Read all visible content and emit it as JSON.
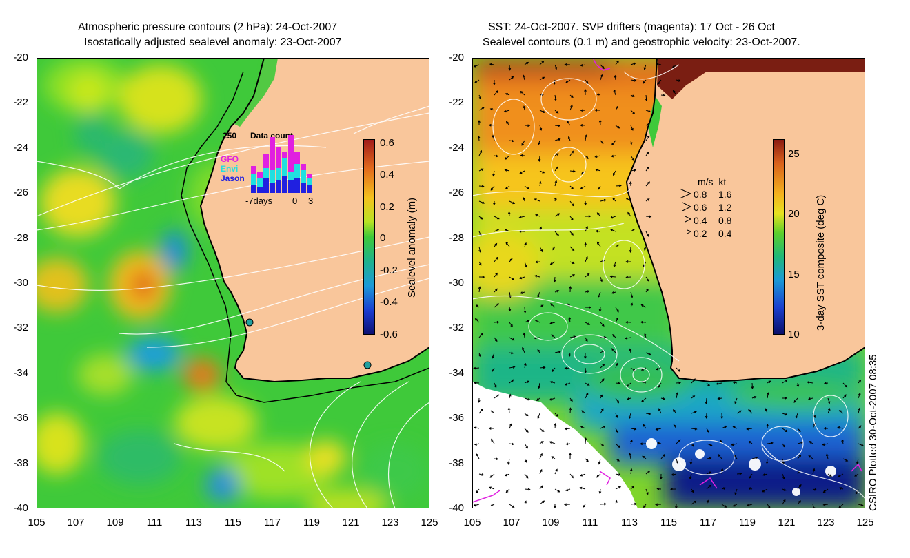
{
  "left_map": {
    "title_line1": "Atmospheric pressure contours (2 hPa): 24-Oct-2007",
    "title_line2": "Isostatically adjusted sealevel anomaly: 23-Oct-2007",
    "colorbar": {
      "label": "Sealevel anomaly (m)",
      "ticks": [
        "0.6",
        "0.4",
        "0.2",
        "0",
        "-0.2",
        "-0.4",
        "-0.6"
      ],
      "range": [
        -0.6,
        0.6
      ]
    },
    "inset": {
      "count_label": "250",
      "title": "Data count",
      "legend": [
        "GFO",
        "Envi",
        "Jason"
      ],
      "x_left": "-7days",
      "x_mid": "0",
      "x_right": "3",
      "series_colors": {
        "GFO": "#e020e0",
        "Envi": "#20e0e0",
        "Jason": "#2020e0"
      },
      "bars": [
        {
          "jason": 20,
          "envi": 25,
          "gfo": 20
        },
        {
          "jason": 15,
          "envi": 20,
          "gfo": 15
        },
        {
          "jason": 35,
          "envi": 25,
          "gfo": 35
        },
        {
          "jason": 25,
          "envi": 30,
          "gfo": 80
        },
        {
          "jason": 30,
          "envi": 30,
          "gfo": 50
        },
        {
          "jason": 40,
          "envi": 45,
          "gfo": 15
        },
        {
          "jason": 30,
          "envi": 20,
          "gfo": 90
        },
        {
          "jason": 35,
          "envi": 35,
          "gfo": 30
        },
        {
          "jason": 25,
          "envi": 30,
          "gfo": 15
        },
        {
          "jason": 20,
          "envi": 15,
          "gfo": 10
        }
      ]
    }
  },
  "right_map": {
    "title_line1": "SST: 24-Oct-2007. SVP drifters (magenta): 17 Oct - 26 Oct",
    "title_line2": "Sealevel contours (0.1 m) and geostrophic velocity: 23-Oct-2007.",
    "colorbar": {
      "label": "3-day SST composite (deg C)",
      "ticks": [
        "25",
        "20",
        "15",
        "10"
      ],
      "range": [
        10,
        26
      ]
    },
    "velocity_legend": {
      "header": "m/s  kt",
      "rows": [
        {
          "ms": "0.8",
          "kt": "1.6"
        },
        {
          "ms": "0.6",
          "kt": "1.2"
        },
        {
          "ms": "0.4",
          "kt": "0.8"
        },
        {
          "ms": "0.2",
          "kt": "0.4"
        }
      ]
    },
    "credit": "CSIRO Plotted 30-Oct-2007 08:35"
  },
  "axes": {
    "y_ticks": [
      "-20",
      "-22",
      "-24",
      "-26",
      "-28",
      "-30",
      "-32",
      "-34",
      "-36",
      "-38",
      "-40"
    ],
    "x_ticks": [
      "105",
      "107",
      "109",
      "111",
      "113",
      "115",
      "117",
      "119",
      "121",
      "123",
      "125"
    ]
  },
  "colors": {
    "land": "#f9c69b",
    "coast": "#000000",
    "contour": "#ffffff",
    "drifter": "#e020e0"
  }
}
